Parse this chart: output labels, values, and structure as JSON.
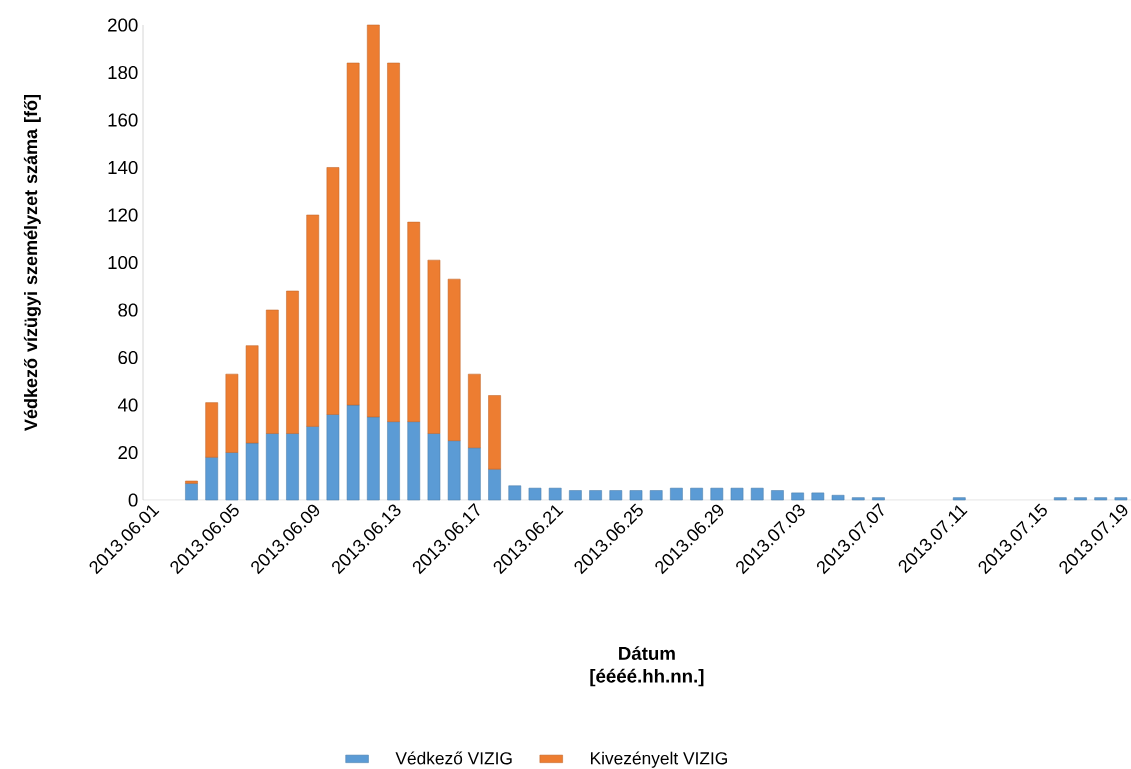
{
  "chart_data": {
    "type": "bar",
    "stacked": true,
    "categories": [
      "2013.06.01",
      null,
      null,
      null,
      "2013.06.05",
      null,
      null,
      null,
      "2013.06.09",
      null,
      null,
      null,
      "2013.06.13",
      null,
      null,
      null,
      "2013.06.17",
      null,
      null,
      null,
      "2013.06.21",
      null,
      null,
      null,
      "2013.06.25",
      null,
      null,
      null,
      "2013.06.29",
      null,
      null,
      null,
      "2013.07.03",
      null,
      null,
      null,
      "2013.07.07",
      null,
      null,
      null,
      "2013.07.11",
      null,
      null,
      null,
      "2013.07.15",
      null,
      null,
      null,
      "2013.07.19"
    ],
    "series": [
      {
        "name": "Védkező VIZIG",
        "color": "#5b9bd5",
        "values": [
          null,
          null,
          7,
          18,
          20,
          24,
          28,
          28,
          31,
          36,
          40,
          35,
          33,
          33,
          28,
          25,
          22,
          13,
          6,
          5,
          5,
          4,
          4,
          4,
          4,
          4,
          5,
          5,
          5,
          5,
          5,
          4,
          3,
          3,
          2,
          1,
          1,
          null,
          null,
          null,
          1,
          null,
          null,
          null,
          null,
          1,
          1,
          1,
          1
        ]
      },
      {
        "name": "Kivezényelt VIZIG",
        "color": "#ed7d31",
        "values": [
          null,
          null,
          1,
          23,
          33,
          41,
          52,
          60,
          89,
          104,
          144,
          165,
          151,
          84,
          73,
          68,
          31,
          31,
          null,
          null,
          null,
          null,
          null,
          null,
          null,
          null,
          null,
          null,
          null,
          null,
          null,
          null,
          null,
          null,
          null,
          null,
          null,
          null,
          null,
          null,
          null,
          null,
          null,
          null,
          null,
          null,
          null,
          null,
          null
        ]
      }
    ],
    "xlabel": "Dátum [éééé.hh.nn.]",
    "ylabel": "Védkező vízügyi személyzet száma [fő]",
    "ylim": [
      0,
      200
    ],
    "yticks": [
      0,
      20,
      40,
      60,
      80,
      100,
      120,
      140,
      160,
      180,
      200
    ],
    "legend": "bottom"
  }
}
